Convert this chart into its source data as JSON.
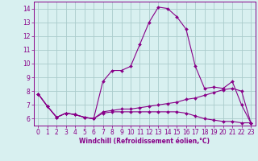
{
  "xlabel": "Windchill (Refroidissement éolien,°C)",
  "x": [
    0,
    1,
    2,
    3,
    4,
    5,
    6,
    7,
    8,
    9,
    10,
    11,
    12,
    13,
    14,
    15,
    16,
    17,
    18,
    19,
    20,
    21,
    22,
    23
  ],
  "line1": [
    7.8,
    6.9,
    6.1,
    6.4,
    6.3,
    6.1,
    6.0,
    8.7,
    9.5,
    9.5,
    9.8,
    11.4,
    13.0,
    14.1,
    14.0,
    13.4,
    12.5,
    9.8,
    8.2,
    8.3,
    8.2,
    8.7,
    7.0,
    5.7
  ],
  "line2": [
    7.8,
    6.9,
    6.1,
    6.4,
    6.3,
    6.1,
    6.0,
    6.5,
    6.6,
    6.7,
    6.7,
    6.8,
    6.9,
    7.0,
    7.1,
    7.2,
    7.4,
    7.5,
    7.7,
    7.9,
    8.1,
    8.2,
    8.0,
    5.7
  ],
  "line3": [
    7.8,
    6.9,
    6.1,
    6.4,
    6.3,
    6.1,
    6.0,
    6.4,
    6.5,
    6.5,
    6.5,
    6.5,
    6.5,
    6.5,
    6.5,
    6.5,
    6.4,
    6.2,
    6.0,
    5.9,
    5.8,
    5.8,
    5.7,
    5.7
  ],
  "line_color": "#880088",
  "bg_color": "#d8f0f0",
  "grid_color": "#aacccc",
  "ylim": [
    5.5,
    14.5
  ],
  "xlim": [
    -0.5,
    23.5
  ],
  "yticks": [
    6,
    7,
    8,
    9,
    10,
    11,
    12,
    13,
    14
  ],
  "xticks": [
    0,
    1,
    2,
    3,
    4,
    5,
    6,
    7,
    8,
    9,
    10,
    11,
    12,
    13,
    14,
    15,
    16,
    17,
    18,
    19,
    20,
    21,
    22,
    23
  ],
  "tick_color": "#880088",
  "label_fontsize": 5.5,
  "xlabel_fontsize": 5.5
}
